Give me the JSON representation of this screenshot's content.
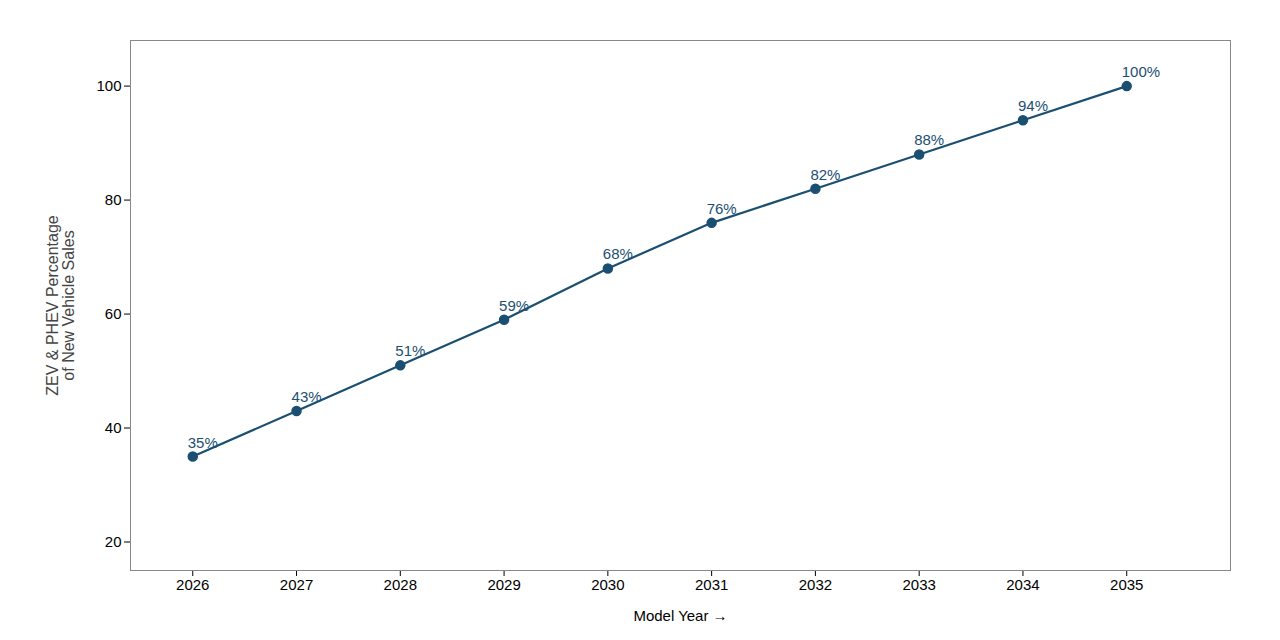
{
  "chart_data": {
    "type": "line",
    "x": [
      2026,
      2027,
      2028,
      2029,
      2030,
      2031,
      2032,
      2033,
      2034,
      2035
    ],
    "values": [
      35,
      43,
      51,
      59,
      68,
      76,
      82,
      88,
      94,
      100
    ],
    "value_labels": [
      "35%",
      "43%",
      "51%",
      "59%",
      "68%",
      "76%",
      "82%",
      "88%",
      "94%",
      "100%"
    ],
    "data_labels": true,
    "color": "#1b4f72",
    "marker": "circle",
    "xlabel": "Model Year",
    "ylabel": "ZEV & PHEV Percentage\nof New Vehicle Sales",
    "xlim": [
      2025.4,
      2036.0
    ],
    "ylim": [
      15,
      108
    ],
    "xticks": [
      2026,
      2027,
      2028,
      2029,
      2030,
      2031,
      2032,
      2033,
      2034,
      2035
    ],
    "yticks": [
      20,
      40,
      60,
      80,
      100
    ],
    "grid": false
  }
}
